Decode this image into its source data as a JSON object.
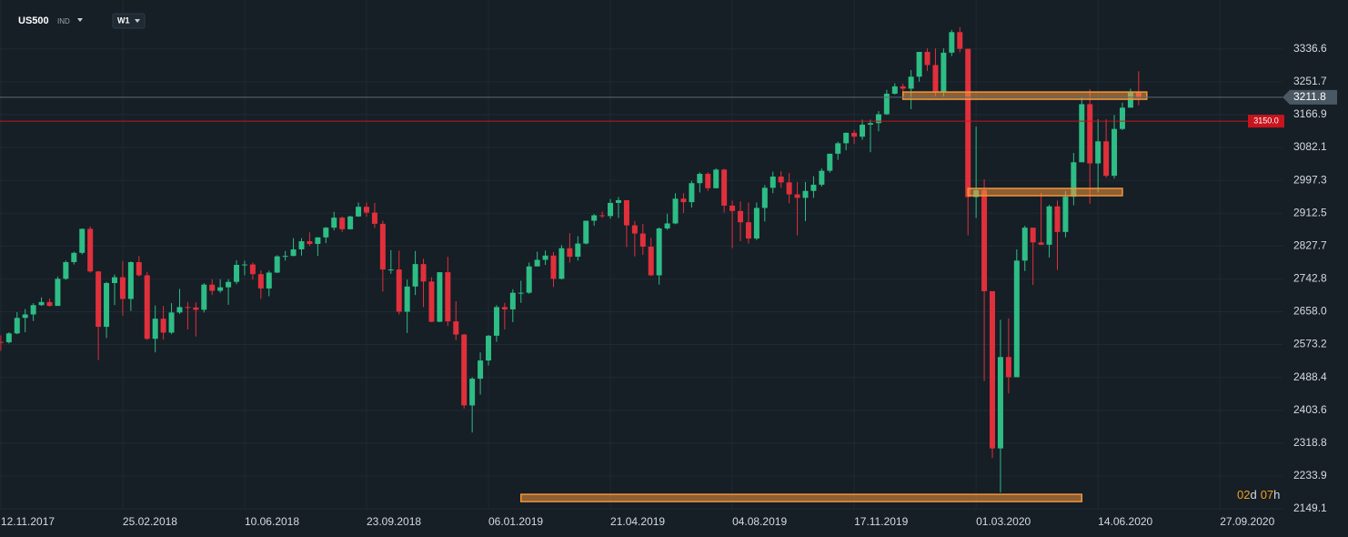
{
  "chart_data": {
    "type": "candlestick",
    "symbol": "US500",
    "symbol_type": "IND",
    "interval": "W1",
    "series": [
      {
        "name": "US500",
        "up_color": "#2dbd85",
        "down_color": "#e0303b",
        "values": [
          [
            2580,
            2597,
            2557,
            2579
          ],
          [
            2579,
            2605,
            2576,
            2602
          ],
          [
            2602,
            2657,
            2600,
            2642
          ],
          [
            2642,
            2665,
            2605,
            2651
          ],
          [
            2651,
            2680,
            2634,
            2675
          ],
          [
            2675,
            2695,
            2673,
            2683
          ],
          [
            2683,
            2692,
            2671,
            2673
          ],
          [
            2673,
            2749,
            2673,
            2743
          ],
          [
            2743,
            2790,
            2740,
            2786
          ],
          [
            2786,
            2813,
            2780,
            2810
          ],
          [
            2810,
            2873,
            2806,
            2872
          ],
          [
            2872,
            2878,
            2759,
            2762
          ],
          [
            2762,
            2763,
            2533,
            2619
          ],
          [
            2619,
            2735,
            2590,
            2732
          ],
          [
            2732,
            2754,
            2675,
            2747
          ],
          [
            2747,
            2789,
            2648,
            2691
          ],
          [
            2691,
            2788,
            2660,
            2786
          ],
          [
            2786,
            2802,
            2749,
            2752
          ],
          [
            2752,
            2761,
            2585,
            2588
          ],
          [
            2588,
            2674,
            2553,
            2640
          ],
          [
            2640,
            2673,
            2586,
            2604
          ],
          [
            2604,
            2680,
            2600,
            2656
          ],
          [
            2656,
            2717,
            2652,
            2670
          ],
          [
            2670,
            2683,
            2612,
            2669
          ],
          [
            2669,
            2682,
            2594,
            2663
          ],
          [
            2663,
            2732,
            2656,
            2728
          ],
          [
            2728,
            2742,
            2701,
            2712
          ],
          [
            2712,
            2742,
            2707,
            2721
          ],
          [
            2721,
            2742,
            2676,
            2735
          ],
          [
            2735,
            2791,
            2729,
            2779
          ],
          [
            2779,
            2790,
            2752,
            2780
          ],
          [
            2780,
            2785,
            2741,
            2755
          ],
          [
            2755,
            2765,
            2691,
            2718
          ],
          [
            2718,
            2764,
            2698,
            2759
          ],
          [
            2759,
            2804,
            2758,
            2801
          ],
          [
            2801,
            2815,
            2790,
            2802
          ],
          [
            2802,
            2848,
            2801,
            2819
          ],
          [
            2819,
            2848,
            2803,
            2840
          ],
          [
            2840,
            2863,
            2828,
            2833
          ],
          [
            2833,
            2850,
            2802,
            2850
          ],
          [
            2850,
            2877,
            2835,
            2875
          ],
          [
            2875,
            2916,
            2868,
            2901
          ],
          [
            2901,
            2904,
            2864,
            2871
          ],
          [
            2871,
            2906,
            2870,
            2904
          ],
          [
            2904,
            2940,
            2903,
            2929
          ],
          [
            2929,
            2940,
            2903,
            2914
          ],
          [
            2914,
            2939,
            2874,
            2885
          ],
          [
            2885,
            2893,
            2710,
            2767
          ],
          [
            2767,
            2817,
            2756,
            2767
          ],
          [
            2767,
            2816,
            2651,
            2658
          ],
          [
            2658,
            2741,
            2603,
            2723
          ],
          [
            2723,
            2815,
            2701,
            2781
          ],
          [
            2781,
            2795,
            2670,
            2736
          ],
          [
            2736,
            2747,
            2631,
            2632
          ],
          [
            2632,
            2760,
            2631,
            2760
          ],
          [
            2760,
            2800,
            2621,
            2633
          ],
          [
            2633,
            2685,
            2584,
            2599
          ],
          [
            2599,
            2601,
            2408,
            2416
          ],
          [
            2416,
            2489,
            2346,
            2485
          ],
          [
            2485,
            2553,
            2444,
            2532
          ],
          [
            2532,
            2598,
            2519,
            2596
          ],
          [
            2596,
            2675,
            2580,
            2670
          ],
          [
            2670,
            2681,
            2612,
            2664
          ],
          [
            2664,
            2716,
            2631,
            2707
          ],
          [
            2707,
            2738,
            2681,
            2707
          ],
          [
            2707,
            2785,
            2704,
            2775
          ],
          [
            2775,
            2813,
            2775,
            2792
          ],
          [
            2792,
            2816,
            2779,
            2803
          ],
          [
            2803,
            2812,
            2722,
            2743
          ],
          [
            2743,
            2830,
            2741,
            2822
          ],
          [
            2822,
            2861,
            2785,
            2800
          ],
          [
            2800,
            2853,
            2790,
            2834
          ],
          [
            2834,
            2893,
            2832,
            2893
          ],
          [
            2893,
            2910,
            2880,
            2907
          ],
          [
            2907,
            2917,
            2900,
            2905
          ],
          [
            2905,
            2949,
            2898,
            2939
          ],
          [
            2939,
            2954,
            2900,
            2946
          ],
          [
            2946,
            2946,
            2825,
            2881
          ],
          [
            2881,
            2892,
            2801,
            2860
          ],
          [
            2860,
            2885,
            2805,
            2826
          ],
          [
            2826,
            2849,
            2750,
            2752
          ],
          [
            2752,
            2876,
            2728,
            2873
          ],
          [
            2873,
            2911,
            2869,
            2886
          ],
          [
            2886,
            2964,
            2884,
            2950
          ],
          [
            2950,
            2964,
            2913,
            2941
          ],
          [
            2941,
            2996,
            2927,
            2990
          ],
          [
            2990,
            3018,
            2966,
            3014
          ],
          [
            3014,
            3018,
            2970,
            2977
          ],
          [
            2977,
            3028,
            2976,
            3025
          ],
          [
            3025,
            3027,
            2914,
            2932
          ],
          [
            2932,
            2945,
            2822,
            2918
          ],
          [
            2918,
            2943,
            2840,
            2889
          ],
          [
            2889,
            2940,
            2834,
            2847
          ],
          [
            2847,
            2940,
            2843,
            2926
          ],
          [
            2926,
            2985,
            2891,
            2978
          ],
          [
            2978,
            3020,
            2964,
            3007
          ],
          [
            3007,
            3021,
            2978,
            2992
          ],
          [
            2992,
            3016,
            2938,
            2961
          ],
          [
            2961,
            2993,
            2855,
            2952
          ],
          [
            2952,
            2993,
            2892,
            2970
          ],
          [
            2970,
            3008,
            2952,
            2986
          ],
          [
            2986,
            3028,
            2981,
            3022
          ],
          [
            3022,
            3066,
            3017,
            3066
          ],
          [
            3066,
            3097,
            3050,
            3093
          ],
          [
            3093,
            3121,
            3075,
            3120
          ],
          [
            3120,
            3127,
            3091,
            3110
          ],
          [
            3110,
            3154,
            3102,
            3141
          ],
          [
            3141,
            3154,
            3070,
            3145
          ],
          [
            3145,
            3176,
            3124,
            3168
          ],
          [
            3168,
            3231,
            3166,
            3221
          ],
          [
            3221,
            3248,
            3219,
            3240
          ],
          [
            3240,
            3247,
            3212,
            3234
          ],
          [
            3234,
            3282,
            3181,
            3265
          ],
          [
            3265,
            3329,
            3252,
            3329
          ],
          [
            3329,
            3338,
            3280,
            3295
          ],
          [
            3295,
            3338,
            3214,
            3225
          ],
          [
            3225,
            3338,
            3214,
            3327
          ],
          [
            3327,
            3386,
            3318,
            3380
          ],
          [
            3380,
            3393,
            3328,
            3337
          ],
          [
            3337,
            3337,
            2855,
            2954
          ],
          [
            2954,
            3136,
            2900,
            2972
          ],
          [
            2972,
            3000,
            2479,
            2711
          ],
          [
            2711,
            2711,
            2280,
            2305
          ],
          [
            2305,
            2637,
            2191,
            2541
          ],
          [
            2541,
            2641,
            2447,
            2489
          ],
          [
            2489,
            2819,
            2489,
            2790
          ],
          [
            2790,
            2880,
            2763,
            2875
          ],
          [
            2875,
            2875,
            2727,
            2837
          ],
          [
            2837,
            2965,
            2830,
            2831
          ],
          [
            2831,
            2934,
            2798,
            2930
          ],
          [
            2930,
            2945,
            2766,
            2864
          ],
          [
            2864,
            2970,
            2850,
            2955
          ],
          [
            2955,
            3068,
            2933,
            3044
          ],
          [
            3044,
            3211,
            3044,
            3194
          ],
          [
            3194,
            3233,
            2937,
            3041
          ],
          [
            3041,
            3155,
            2966,
            3098
          ],
          [
            3098,
            3155,
            3004,
            3009
          ],
          [
            3009,
            3166,
            3002,
            3130
          ],
          [
            3130,
            3198,
            3127,
            3185
          ],
          [
            3185,
            3234,
            3185,
            3225
          ],
          [
            3225,
            3279,
            3191,
            3211.8
          ]
        ]
      }
    ],
    "xlim": [
      -0.1,
      157.7
    ],
    "xticks": [
      {
        "value": 0,
        "label": "12.11.2017"
      },
      {
        "value": 15,
        "label": "25.02.2018"
      },
      {
        "value": 30,
        "label": "10.06.2018"
      },
      {
        "value": 45,
        "label": "23.09.2018"
      },
      {
        "value": 60,
        "label": "06.01.2019"
      },
      {
        "value": 75,
        "label": "21.04.2019"
      },
      {
        "value": 90,
        "label": "04.08.2019"
      },
      {
        "value": 105,
        "label": "17.11.2019"
      },
      {
        "value": 120,
        "label": "01.03.2020"
      },
      {
        "value": 135,
        "label": "14.06.2020"
      },
      {
        "value": 150,
        "label": "27.09.2020"
      }
    ],
    "ylim": [
      2146.7,
      3463
    ],
    "yticks": [
      3336.6,
      3251.7,
      3166.9,
      3082.1,
      2997.3,
      2912.5,
      2827.7,
      2742.8,
      {
        "value": 2658,
        "label": "2658.0"
      },
      2573.2,
      2488.4,
      2403.6,
      2318.8,
      2233.9,
      2149.1
    ],
    "grid": true,
    "current_price": 3211.8,
    "alert_level": {
      "value": 3150,
      "label": "3150.0",
      "color": "#c8141e"
    },
    "zones": [
      {
        "value": 3216,
        "x": [
          111,
          141
        ]
      },
      {
        "value": 2967,
        "x": [
          119,
          138
        ]
      },
      {
        "value": 2177,
        "x": [
          64,
          133
        ]
      }
    ],
    "countdown": [
      "02",
      "d",
      "07",
      "h"
    ]
  }
}
